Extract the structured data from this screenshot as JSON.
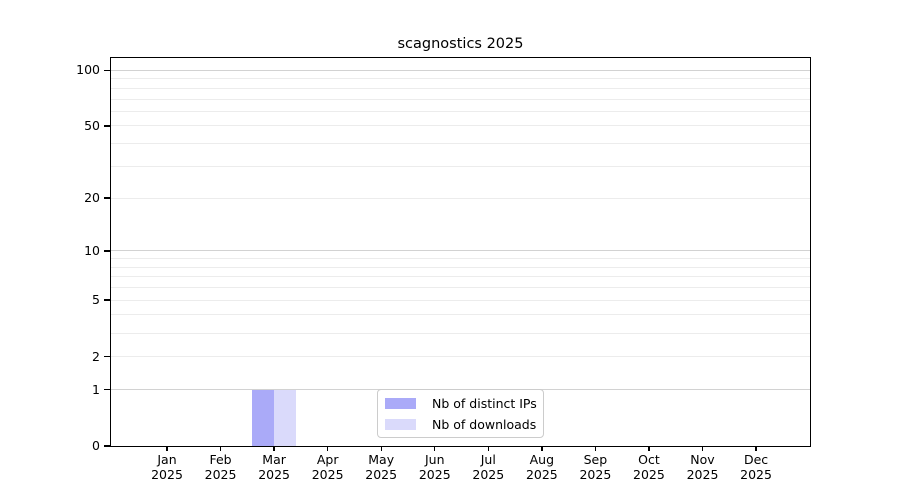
{
  "chart_data": {
    "type": "bar",
    "title": "scagnostics 2025",
    "categories": [
      "Jan 2025",
      "Feb 2025",
      "Mar 2025",
      "Apr 2025",
      "May 2025",
      "Jun 2025",
      "Jul 2025",
      "Aug 2025",
      "Sep 2025",
      "Oct 2025",
      "Nov 2025",
      "Dec 2025"
    ],
    "series": [
      {
        "name": "Nb of distinct IPs",
        "color": "#aaaaf8",
        "values": [
          0,
          0,
          1,
          0,
          0,
          0,
          0,
          0,
          0,
          0,
          0,
          0
        ]
      },
      {
        "name": "Nb of downloads",
        "color": "#dadafb",
        "values": [
          0,
          0,
          1,
          0,
          0,
          0,
          0,
          0,
          0,
          0,
          0,
          0
        ]
      }
    ],
    "xlabel": "",
    "ylabel": "",
    "yscale": "log1p",
    "ylim": [
      0,
      115
    ],
    "ytick_values": [
      0,
      1,
      2,
      5,
      10,
      20,
      50,
      100
    ],
    "ytick_labels": [
      "0",
      "1",
      "2",
      "5",
      "10",
      "20",
      "50",
      "100"
    ],
    "major_gridlines": [
      1,
      10,
      100
    ],
    "minor_gridlines": [
      2,
      3,
      4,
      5,
      6,
      7,
      8,
      9,
      20,
      30,
      40,
      50,
      60,
      70,
      80,
      90
    ],
    "grid": "on",
    "legend_position": "lower-center-inside",
    "colors": {
      "major_grid": "#d2d2d2",
      "minor_grid": "#ececec",
      "axis": "#000000",
      "background": "#ffffff"
    }
  }
}
